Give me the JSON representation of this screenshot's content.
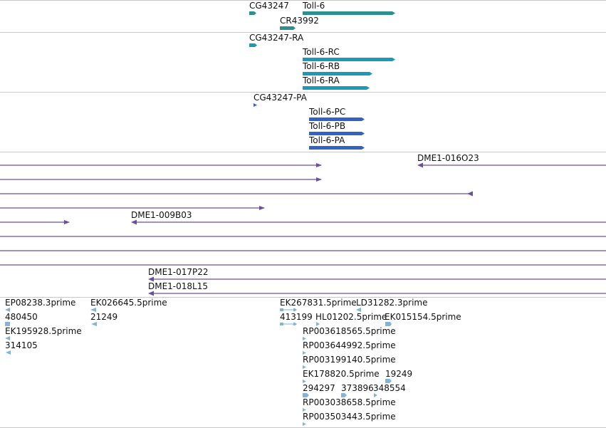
{
  "colors": {
    "gene": "#2f8f8f",
    "transcript": "#1a9ab8",
    "protein": "#2f63c4",
    "clone": "#6a4fa0",
    "est": "#7fb5d8",
    "separator": "#c8c8c8"
  },
  "tracks": {
    "genes": {
      "features": [
        {
          "id": "gene-CG43247",
          "label": "CG43247"
        },
        {
          "id": "gene-Toll-6",
          "label": "Toll-6"
        },
        {
          "id": "gene-CR43992",
          "label": "CR43992"
        }
      ]
    },
    "transcripts": {
      "features": [
        {
          "id": "transcript-CG43247-RA",
          "label": "CG43247-RA"
        },
        {
          "id": "transcript-Toll-6-RC",
          "label": "Toll-6-RC"
        },
        {
          "id": "transcript-Toll-6-RB",
          "label": "Toll-6-RB"
        },
        {
          "id": "transcript-Toll-6-RA",
          "label": "Toll-6-RA"
        }
      ]
    },
    "proteins": {
      "features": [
        {
          "id": "protein-CG43247-PA",
          "label": "CG43247-PA"
        },
        {
          "id": "protein-Toll-6-PC",
          "label": "Toll-6-PC"
        },
        {
          "id": "protein-Toll-6-PB",
          "label": "Toll-6-PB"
        },
        {
          "id": "protein-Toll-6-PA",
          "label": "Toll-6-PA"
        }
      ]
    },
    "clones": {
      "features": [
        {
          "id": "clone-DME1-016O23",
          "label": "DME1-016O23"
        },
        {
          "id": "clone-DME1-009B03",
          "label": "DME1-009B03"
        },
        {
          "id": "clone-DME1-017P22",
          "label": "DME1-017P22"
        },
        {
          "id": "clone-DME1-018L15",
          "label": "DME1-018L15"
        }
      ]
    },
    "ests": {
      "features": [
        {
          "id": "est-EP08238.3prime",
          "label": "EP08238.3prime"
        },
        {
          "id": "est-480450",
          "label": "480450"
        },
        {
          "id": "est-EK195928.5prime",
          "label": "EK195928.5prime"
        },
        {
          "id": "est-314105",
          "label": "314105"
        },
        {
          "id": "est-EK026645.5prime",
          "label": "EK026645.5prime"
        },
        {
          "id": "est-21249",
          "label": "21249"
        },
        {
          "id": "est-EK267831.5prime",
          "label": "EK267831.5prime"
        },
        {
          "id": "est-LD31282.3prime",
          "label": "LD31282.3prime"
        },
        {
          "id": "est-413199",
          "label": "413199"
        },
        {
          "id": "est-HL01202.5prime",
          "label": "HL01202.5prime"
        },
        {
          "id": "est-EK015154.5prime",
          "label": "EK015154.5prime"
        },
        {
          "id": "est-RP003618565.5prime",
          "label": "RP003618565.5prime"
        },
        {
          "id": "est-RP003644992.5prime",
          "label": "RP003644992.5prime"
        },
        {
          "id": "est-RP003199140.5prime",
          "label": "RP003199140.5prime"
        },
        {
          "id": "est-EK178820.5prime",
          "label": "EK178820.5prime"
        },
        {
          "id": "est-19249",
          "label": "19249"
        },
        {
          "id": "est-294297",
          "label": "294297"
        },
        {
          "id": "est-373896",
          "label": "373896"
        },
        {
          "id": "est-348554",
          "label": "348554"
        },
        {
          "id": "est-RP003038658.5prime",
          "label": "RP003038658.5prime"
        },
        {
          "id": "est-RP003503443.5prime",
          "label": "RP003503443.5prime"
        }
      ]
    }
  }
}
